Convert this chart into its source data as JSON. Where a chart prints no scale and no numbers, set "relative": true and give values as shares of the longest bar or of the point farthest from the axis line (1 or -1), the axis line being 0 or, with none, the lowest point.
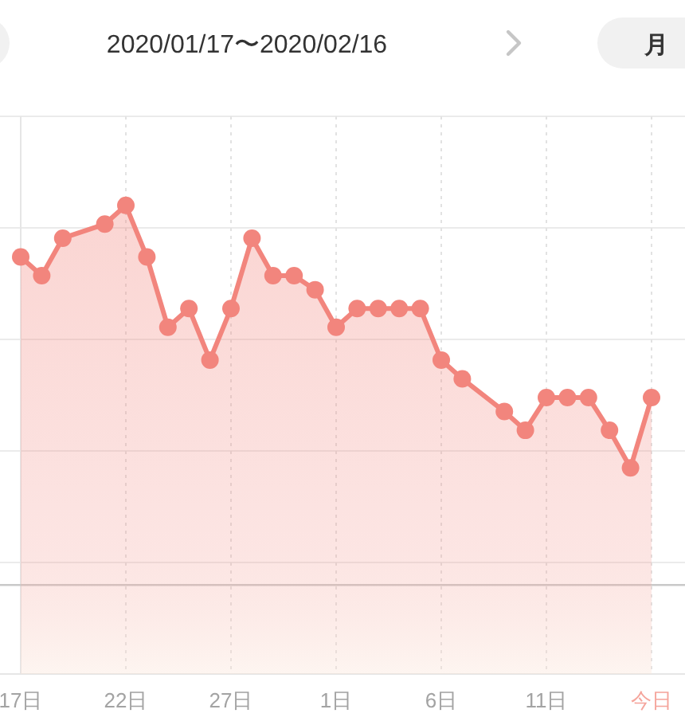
{
  "chart_data": {
    "type": "area",
    "title": "2020/01/17〜2020/02/16",
    "annotations": [
      "月"
    ],
    "relative": true,
    "categories": [
      "17日",
      null,
      null,
      null,
      null,
      "22日",
      null,
      null,
      null,
      null,
      "27日",
      null,
      null,
      null,
      null,
      "1日",
      null,
      null,
      null,
      null,
      "6日",
      null,
      null,
      null,
      null,
      "11日",
      null,
      null,
      null,
      null,
      "今日"
    ],
    "series": [
      {
        "color": "#f2857d",
        "values": [
          0.89,
          0.85,
          0.93,
          null,
          0.96,
          1,
          0.89,
          0.74,
          0.78,
          0.67,
          0.78,
          0.93,
          0.85,
          0.85,
          0.82,
          0.74,
          0.78,
          0.78,
          0.78,
          0.78,
          0.67,
          0.63,
          null,
          0.56,
          0.52,
          0.59,
          0.59,
          0.59,
          0.52,
          0.44,
          0.59
        ]
      }
    ],
    "marker": "circle",
    "grid": true,
    "ref_lines": [
      {
        "axis": "y",
        "value": 0.19,
        "color": "#c9c9c9"
      }
    ]
  }
}
